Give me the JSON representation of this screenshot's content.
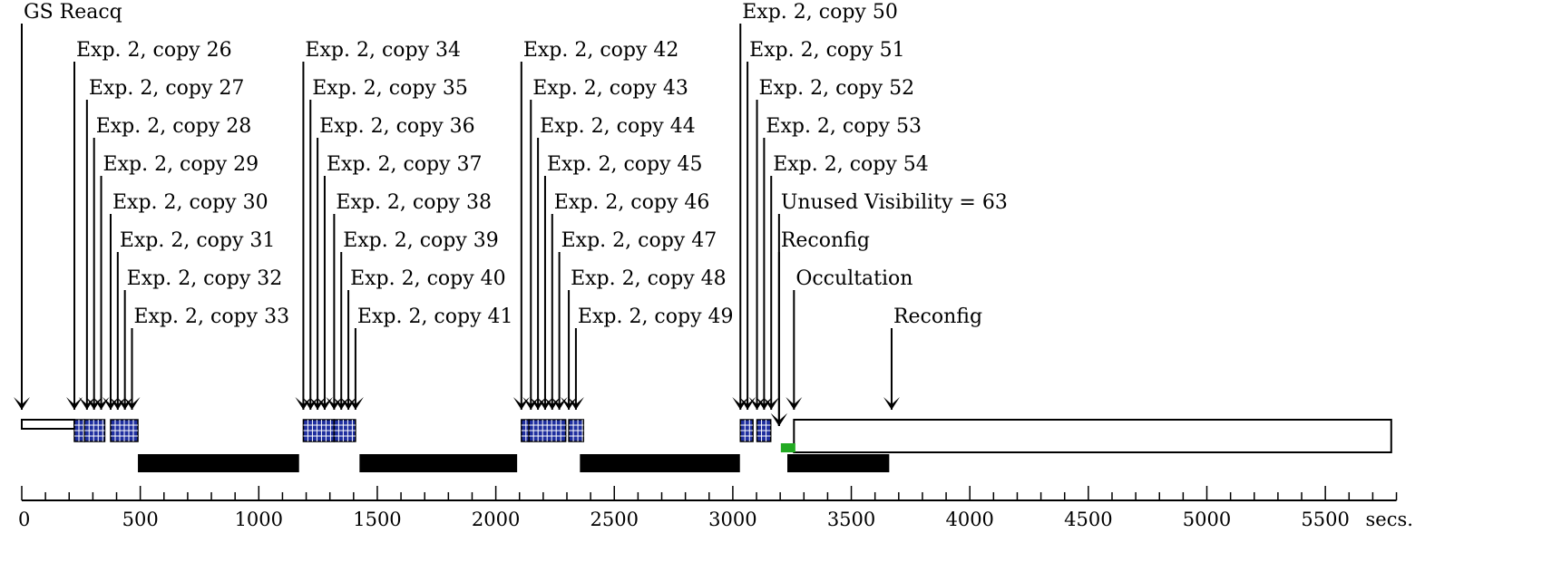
{
  "units": "secs.",
  "ticks": {
    "labels": [
      {
        "value": 0,
        "text": "0"
      },
      {
        "value": 500,
        "text": "500"
      },
      {
        "value": 1000,
        "text": "1000"
      },
      {
        "value": 1500,
        "text": "1500"
      },
      {
        "value": 2000,
        "text": "2000"
      },
      {
        "value": 2500,
        "text": "2500"
      },
      {
        "value": 3000,
        "text": "3000"
      },
      {
        "value": 3500,
        "text": "3500"
      },
      {
        "value": 4000,
        "text": "4000"
      },
      {
        "value": 4500,
        "text": "4500"
      },
      {
        "value": 5000,
        "text": "5000"
      },
      {
        "value": 5500,
        "text": "5500"
      }
    ],
    "minor_step": 100,
    "max": 5800
  },
  "colors": {
    "exposure_fill": "#1f2f9f",
    "exposure_grid": "#ffffff",
    "gs_reacq_box": "#ffffff",
    "reconfig_marker": "#22aa22",
    "occultation_bar": "#000000",
    "visibility_box": "#ffffff"
  },
  "events": [
    {
      "label": "GS Reacq",
      "time": 0
    },
    {
      "label": "Exp. 2, copy 26",
      "time": 222
    },
    {
      "label": "Exp. 2, copy 27",
      "time": 275
    },
    {
      "label": "Exp. 2, copy 28",
      "time": 305
    },
    {
      "label": "Exp. 2, copy 29",
      "time": 335
    },
    {
      "label": "Exp. 2, copy 30",
      "time": 375
    },
    {
      "label": "Exp. 2, copy 31",
      "time": 405
    },
    {
      "label": "Exp. 2, copy 32",
      "time": 435
    },
    {
      "label": "Exp. 2, copy 33",
      "time": 465
    },
    {
      "label": "Exp. 2, copy 34",
      "time": 1188
    },
    {
      "label": "Exp. 2, copy 35",
      "time": 1218
    },
    {
      "label": "Exp. 2, copy 36",
      "time": 1248
    },
    {
      "label": "Exp. 2, copy 37",
      "time": 1278
    },
    {
      "label": "Exp. 2, copy 38",
      "time": 1318
    },
    {
      "label": "Exp. 2, copy 39",
      "time": 1348
    },
    {
      "label": "Exp. 2, copy 40",
      "time": 1378
    },
    {
      "label": "Exp. 2, copy 41",
      "time": 1408
    },
    {
      "label": "Exp. 2, copy 42",
      "time": 2108
    },
    {
      "label": "Exp. 2, copy 43",
      "time": 2148
    },
    {
      "label": "Exp. 2, copy 44",
      "time": 2178
    },
    {
      "label": "Exp. 2, copy 45",
      "time": 2208
    },
    {
      "label": "Exp. 2, copy 46",
      "time": 2238
    },
    {
      "label": "Exp. 2, copy 47",
      "time": 2268
    },
    {
      "label": "Exp. 2, copy 48",
      "time": 2308
    },
    {
      "label": "Exp. 2, copy 49",
      "time": 2338
    },
    {
      "label": "Exp. 2, copy 50",
      "time": 3032
    },
    {
      "label": "Exp. 2, copy 51",
      "time": 3062
    },
    {
      "label": "Exp. 2, copy 52",
      "time": 3102
    },
    {
      "label": "Exp. 2, copy 53",
      "time": 3132
    },
    {
      "label": "Exp. 2, copy 54",
      "time": 3162
    },
    {
      "label": "Unused Visibility = 63",
      "time": 3195
    },
    {
      "label": "Reconfig",
      "time": 3195
    },
    {
      "label": "Occultation",
      "time": 3258
    },
    {
      "label": "Reconfig",
      "time": 3670
    }
  ],
  "gs_reacq_box": {
    "start": 0,
    "end": 222
  },
  "exposure_blocks": [
    {
      "start": 222,
      "end": 265
    },
    {
      "start": 265,
      "end": 350
    },
    {
      "start": 375,
      "end": 490
    },
    {
      "start": 1188,
      "end": 1318
    },
    {
      "start": 1318,
      "end": 1408
    },
    {
      "start": 2108,
      "end": 2140
    },
    {
      "start": 2140,
      "end": 2295
    },
    {
      "start": 2308,
      "end": 2370
    },
    {
      "start": 3032,
      "end": 3085
    },
    {
      "start": 3102,
      "end": 3160
    }
  ],
  "reconfig_marker": {
    "start": 3195,
    "end": 3258
  },
  "occultation_bars": [
    {
      "start": 490,
      "end": 1170
    },
    {
      "start": 1425,
      "end": 2090
    },
    {
      "start": 2355,
      "end": 3030
    },
    {
      "start": 3230,
      "end": 3660
    }
  ],
  "visibility_box": {
    "start": 3258,
    "end": 5778
  }
}
